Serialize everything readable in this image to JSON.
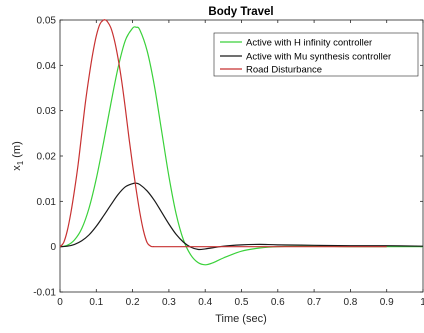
{
  "chart_data": {
    "type": "line",
    "title": "Body Travel",
    "xlabel": "Time (sec)",
    "ylabel_main": "x",
    "ylabel_sub": "1",
    "ylabel_unit": " (m)",
    "xlim": [
      0,
      1
    ],
    "ylim": [
      -0.01,
      0.05
    ],
    "grid": false,
    "legend_position": "top-right",
    "x_ticks": [
      0,
      0.1,
      0.2,
      0.3,
      0.4,
      0.5,
      0.6,
      0.7,
      0.8,
      0.9,
      1
    ],
    "x_tick_labels": [
      "0",
      "0.1",
      "0.2",
      "0.3",
      "0.4",
      "0.5",
      "0.6",
      "0.7",
      "0.8",
      "0.9",
      "1"
    ],
    "y_ticks": [
      -0.01,
      0,
      0.01,
      0.02,
      0.03,
      0.04,
      0.05
    ],
    "y_tick_labels": [
      "-0.01",
      "0",
      "0.01",
      "0.02",
      "0.03",
      "0.04",
      "0.05"
    ],
    "series": [
      {
        "name": "Active with H infinity controller",
        "color": "#3ad13a",
        "x": [
          0,
          0.02,
          0.04,
          0.06,
          0.08,
          0.1,
          0.12,
          0.14,
          0.16,
          0.18,
          0.2,
          0.21,
          0.22,
          0.24,
          0.26,
          0.28,
          0.3,
          0.32,
          0.34,
          0.36,
          0.38,
          0.4,
          0.42,
          0.45,
          0.5,
          0.55,
          0.6,
          0.7,
          0.8,
          0.9,
          1.0
        ],
        "y": [
          0,
          0.0003,
          0.0015,
          0.004,
          0.0085,
          0.015,
          0.023,
          0.0315,
          0.0395,
          0.0455,
          0.0482,
          0.0484,
          0.0478,
          0.0432,
          0.0355,
          0.0255,
          0.0155,
          0.0072,
          0.0015,
          -0.0018,
          -0.0035,
          -0.004,
          -0.0036,
          -0.0025,
          -0.001,
          -0.0003,
          0.0,
          0.0001,
          0.0,
          0.0,
          0.0
        ]
      },
      {
        "name": "Active with Mu synthesis controller",
        "color": "#1a1a1a",
        "x": [
          0,
          0.02,
          0.04,
          0.06,
          0.08,
          0.1,
          0.12,
          0.14,
          0.16,
          0.18,
          0.2,
          0.21,
          0.22,
          0.24,
          0.26,
          0.28,
          0.3,
          0.32,
          0.34,
          0.36,
          0.38,
          0.4,
          0.45,
          0.5,
          0.55,
          0.6,
          0.7,
          0.8,
          0.9,
          1.0
        ],
        "y": [
          0,
          0.0001,
          0.0005,
          0.0013,
          0.0026,
          0.0045,
          0.0068,
          0.0092,
          0.0115,
          0.0132,
          0.0139,
          0.014,
          0.0137,
          0.0123,
          0.0102,
          0.0076,
          0.005,
          0.0027,
          0.001,
          -0.0001,
          -0.0006,
          -0.0005,
          0.0001,
          0.0004,
          0.0005,
          0.0004,
          0.0003,
          0.0002,
          0.0002,
          0.0001
        ]
      },
      {
        "name": "Road Disturbance",
        "color": "#c83232",
        "x": [
          0,
          0.01,
          0.02,
          0.03,
          0.04,
          0.05,
          0.06,
          0.07,
          0.08,
          0.09,
          0.1,
          0.11,
          0.12,
          0.125,
          0.13,
          0.14,
          0.15,
          0.16,
          0.17,
          0.18,
          0.19,
          0.2,
          0.21,
          0.22,
          0.23,
          0.24,
          0.25,
          0.26,
          0.3,
          0.4,
          0.6,
          0.8,
          0.9
        ],
        "y": [
          0,
          0.0009,
          0.0035,
          0.0075,
          0.0125,
          0.0182,
          0.025,
          0.0318,
          0.0375,
          0.0425,
          0.0465,
          0.0491,
          0.05,
          0.05,
          0.0497,
          0.0483,
          0.0455,
          0.0415,
          0.0365,
          0.0305,
          0.024,
          0.018,
          0.0125,
          0.0075,
          0.0035,
          0.0009,
          0.0001,
          0,
          0,
          0,
          0,
          0,
          0
        ]
      }
    ]
  }
}
